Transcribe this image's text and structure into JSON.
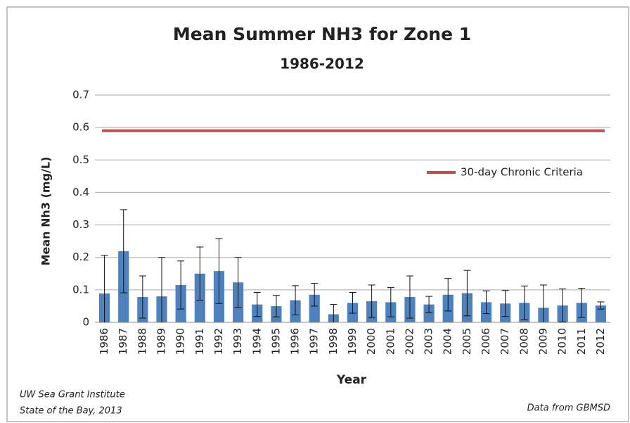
{
  "chart_data": {
    "type": "bar",
    "title": "Mean Summer NH3 for Zone 1",
    "subtitle": "1986-2012",
    "x_label": "Year",
    "y_label": "Mean Nh3 (mg/L)",
    "categories": [
      "1986",
      "1987",
      "1988",
      "1989",
      "1990",
      "1991",
      "1992",
      "1993",
      "1994",
      "1995",
      "1996",
      "1997",
      "1998",
      "1999",
      "2000",
      "2001",
      "2002",
      "2003",
      "2004",
      "2005",
      "2006",
      "2007",
      "2008",
      "2009",
      "2010",
      "2011",
      "2012"
    ],
    "values": [
      0.089,
      0.219,
      0.078,
      0.08,
      0.115,
      0.15,
      0.158,
      0.123,
      0.055,
      0.05,
      0.068,
      0.085,
      0.025,
      0.06,
      0.065,
      0.062,
      0.078,
      0.055,
      0.085,
      0.09,
      0.062,
      0.058,
      0.06,
      0.045,
      0.052,
      0.06,
      0.052
    ],
    "errors": [
      0.117,
      0.128,
      0.065,
      0.12,
      0.074,
      0.082,
      0.1,
      0.077,
      0.037,
      0.033,
      0.045,
      0.035,
      0.03,
      0.032,
      0.05,
      0.045,
      0.065,
      0.025,
      0.05,
      0.07,
      0.035,
      0.04,
      0.052,
      0.07,
      0.051,
      0.045,
      0.011
    ],
    "color": "#4f81bd",
    "reference_line": {
      "name": "30-day Chronic Criteria",
      "value": 0.59,
      "color": "#c0504d"
    },
    "ylim": [
      0,
      0.7
    ],
    "yticks": [
      0,
      0.1,
      0.2,
      0.3,
      0.4,
      0.5,
      0.6,
      0.7
    ],
    "grid": true,
    "notes": [
      "UW Sea Grant Institute",
      "State of the Bay, 2013"
    ],
    "source": "Data from GBMSD"
  }
}
